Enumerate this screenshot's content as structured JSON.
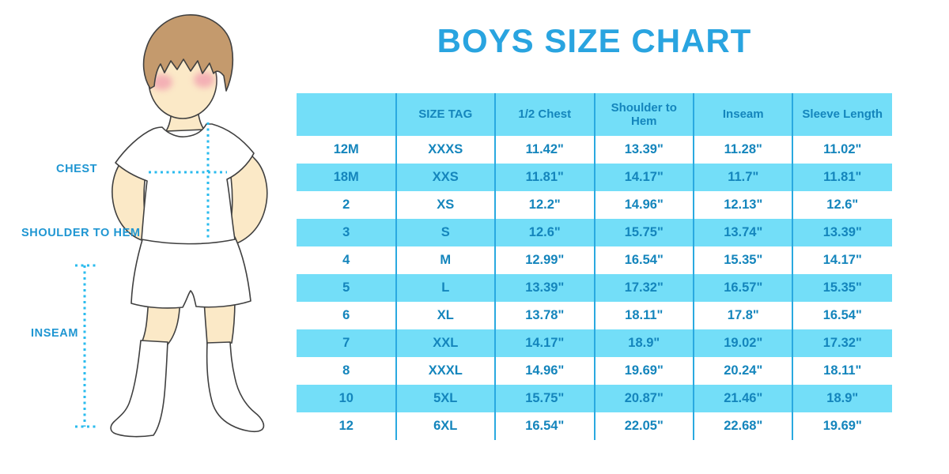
{
  "title": "BOYS SIZE CHART",
  "figure": {
    "labels": {
      "chest": "CHEST",
      "shoulder_to_hem": "SHOULDER TO HEM",
      "inseam": "INSEAM"
    }
  },
  "chart_data": {
    "type": "table",
    "title": "BOYS SIZE CHART",
    "columns": [
      "",
      "SIZE TAG",
      "1/2 Chest",
      "Shoulder to Hem",
      "Inseam",
      "Sleeve Length"
    ],
    "rows": [
      [
        "12M",
        "XXXS",
        "11.42\"",
        "13.39\"",
        "11.28\"",
        "11.02\""
      ],
      [
        "18M",
        "XXS",
        "11.81\"",
        "14.17\"",
        "11.7\"",
        "11.81\""
      ],
      [
        "2",
        "XS",
        "12.2\"",
        "14.96\"",
        "12.13\"",
        "12.6\""
      ],
      [
        "3",
        "S",
        "12.6\"",
        "15.75\"",
        "13.74\"",
        "13.39\""
      ],
      [
        "4",
        "M",
        "12.99\"",
        "16.54\"",
        "15.35\"",
        "14.17\""
      ],
      [
        "5",
        "L",
        "13.39\"",
        "17.32\"",
        "16.57\"",
        "15.35\""
      ],
      [
        "6",
        "XL",
        "13.78\"",
        "18.11\"",
        "17.8\"",
        "16.54\""
      ],
      [
        "7",
        "XXL",
        "14.17\"",
        "18.9\"",
        "19.02\"",
        "17.32\""
      ],
      [
        "8",
        "XXXL",
        "14.96\"",
        "19.69\"",
        "20.24\"",
        "18.11\""
      ],
      [
        "10",
        "5XL",
        "15.75\"",
        "20.87\"",
        "21.46\"",
        "18.9\""
      ],
      [
        "12",
        "6XL",
        "16.54\"",
        "22.05\"",
        "22.68\"",
        "19.69\""
      ]
    ]
  },
  "colors": {
    "accent_blue": "#29A4E0",
    "label_blue": "#1F96D2",
    "table_text": "#1485BC",
    "row_cyan": "#73DEF8",
    "divider": "#2AA9E0",
    "dotted_line": "#2ABBEE",
    "skin": "#FBE9C7",
    "hair": "#C49A6D",
    "outline": "#404040"
  }
}
